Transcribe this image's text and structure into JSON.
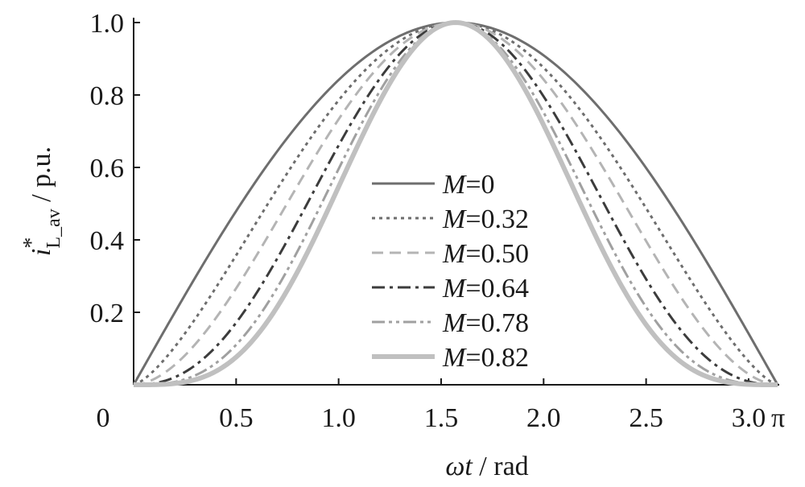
{
  "chart_data": {
    "type": "line",
    "title": "",
    "xlabel": {
      "italic": "ωt",
      "rest": " / rad"
    },
    "ylabel": {
      "main": "i",
      "sup": "*",
      "sub": "L_av",
      "rest": " / p.u."
    },
    "xlim": [
      0,
      3.14159
    ],
    "ylim": [
      0,
      1.0
    ],
    "x_ticks": [
      0,
      0.5,
      1.0,
      1.5,
      2.0,
      2.5,
      3.0
    ],
    "x_tick_labels": [
      "0",
      "0.5",
      "1.0",
      "1.5",
      "2.0",
      "2.5",
      "3.0"
    ],
    "x_end_label": "π",
    "y_ticks": [
      0.2,
      0.4,
      0.6,
      0.8,
      1.0
    ],
    "y_tick_labels": [
      "0.2",
      "0.4",
      "0.6",
      "0.8",
      "1.0"
    ],
    "grid": false,
    "legend_position": "center",
    "series": [
      {
        "name": "M=0",
        "M_value": "0",
        "exponent": 1.0,
        "color": "#6e6e6e",
        "width": 3,
        "dash": ""
      },
      {
        "name": "M=0.32",
        "M_value": "0.32",
        "exponent": 1.4,
        "color": "#6e6e6e",
        "width": 3,
        "dash": "4,5"
      },
      {
        "name": "M=0.50",
        "M_value": "0.50",
        "exponent": 1.8,
        "color": "#b4b4b4",
        "width": 3,
        "dash": "14,8"
      },
      {
        "name": "M=0.64",
        "M_value": "0.64",
        "exponent": 2.4,
        "color": "#3c3c3c",
        "width": 3,
        "dash": "16,6,4,6"
      },
      {
        "name": "M=0.78",
        "M_value": "0.78",
        "exponent": 3.0,
        "color": "#a0a0a0",
        "width": 3,
        "dash": "16,5,4,5,4,5"
      },
      {
        "name": "M=0.82",
        "M_value": "0.82",
        "exponent": 3.5,
        "color": "#c0c0c0",
        "width": 6,
        "dash": ""
      }
    ]
  }
}
